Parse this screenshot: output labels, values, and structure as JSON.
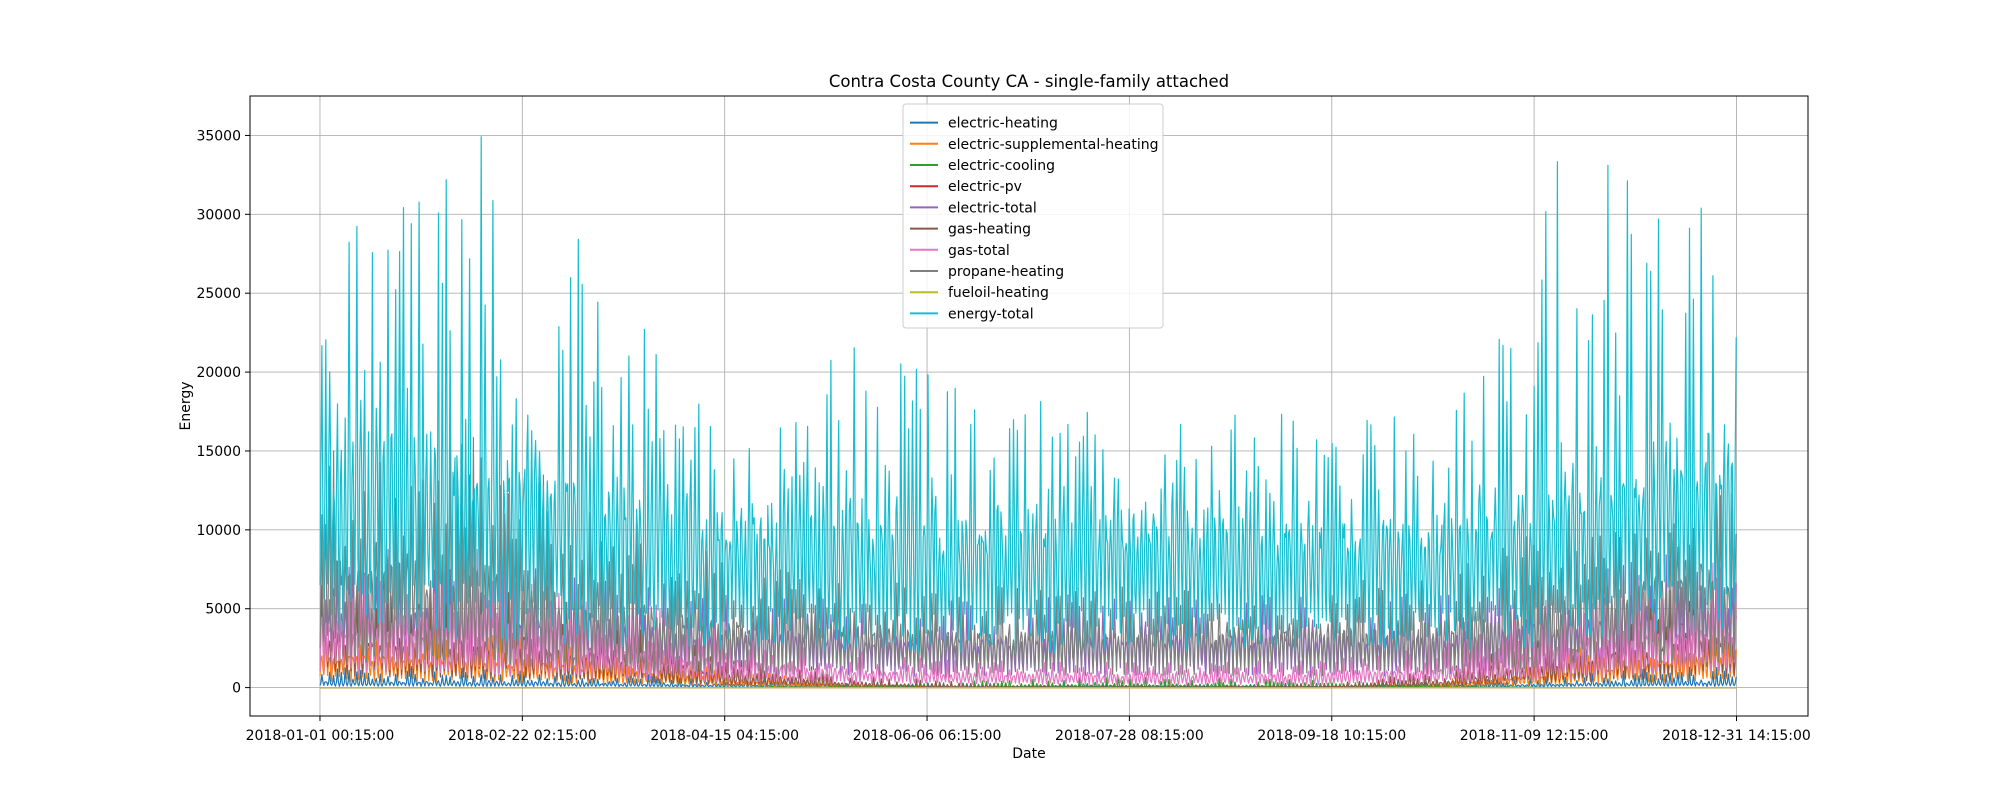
{
  "chart_data": {
    "type": "line",
    "title": "Contra Costa County CA - single-family attached",
    "xlabel": "Date",
    "ylabel": "Energy",
    "xlim": [
      "2017-12-14 00:00",
      "2019-01-19 00:00"
    ],
    "ylim": [
      -1800,
      37500
    ],
    "yticks": [
      0,
      5000,
      10000,
      15000,
      20000,
      25000,
      30000,
      35000
    ],
    "xticks": [
      "2018-01-01 00:15:00",
      "2018-02-22 02:15:00",
      "2018-04-15 04:15:00",
      "2018-06-06 06:15:00",
      "2018-07-28 08:15:00",
      "2018-09-18 10:15:00",
      "2018-11-09 12:15:00",
      "2018-12-31 14:15:00"
    ],
    "grid": true,
    "legend_position": "upper-center",
    "series": [
      {
        "name": "electric-heating",
        "color": "#1f77b4",
        "monthly_mean": [
          300,
          260,
          200,
          120,
          80,
          60,
          60,
          60,
          60,
          90,
          180,
          280
        ],
        "monthly_peak": [
          1400,
          1200,
          900,
          600,
          400,
          300,
          300,
          300,
          300,
          400,
          800,
          1300
        ]
      },
      {
        "name": "electric-supplemental-heating",
        "color": "#ff7f0e",
        "monthly_mean": [
          1600,
          1400,
          900,
          300,
          60,
          0,
          0,
          0,
          0,
          100,
          700,
          1500
        ],
        "monthly_peak": [
          3300,
          4200,
          2600,
          1200,
          400,
          0,
          0,
          0,
          0,
          500,
          2500,
          3300
        ]
      },
      {
        "name": "electric-cooling",
        "color": "#2ca02c",
        "monthly_mean": [
          0,
          0,
          0,
          5,
          20,
          60,
          120,
          110,
          80,
          30,
          0,
          0
        ],
        "monthly_peak": [
          0,
          0,
          0,
          50,
          150,
          400,
          700,
          650,
          500,
          200,
          0,
          0
        ]
      },
      {
        "name": "electric-pv",
        "color": "#d62728",
        "monthly_mean": [
          0,
          0,
          0,
          0,
          0,
          0,
          0,
          0,
          0,
          0,
          0,
          0
        ],
        "monthly_peak": [
          0,
          0,
          0,
          0,
          0,
          0,
          0,
          0,
          0,
          0,
          0,
          0
        ]
      },
      {
        "name": "electric-total",
        "color": "#9467bd",
        "monthly_mean": [
          4000,
          3800,
          3200,
          2800,
          2600,
          2500,
          2700,
          2700,
          2600,
          2700,
          3300,
          3900
        ],
        "monthly_peak": [
          9000,
          8500,
          7000,
          6000,
          5500,
          5500,
          6000,
          6000,
          5800,
          6000,
          7500,
          8800
        ]
      },
      {
        "name": "gas-heating",
        "color": "#8c564b",
        "monthly_mean": [
          2600,
          2300,
          1500,
          600,
          200,
          50,
          20,
          20,
          50,
          300,
          1300,
          2500
        ],
        "monthly_peak": [
          7000,
          6500,
          4500,
          2200,
          900,
          300,
          150,
          150,
          300,
          1200,
          4000,
          6800
        ]
      },
      {
        "name": "gas-total",
        "color": "#e377c2",
        "monthly_mean": [
          3200,
          2900,
          2100,
          1300,
          900,
          700,
          650,
          650,
          700,
          1000,
          2000,
          3100
        ],
        "monthly_peak": [
          8500,
          9500,
          6000,
          3500,
          2500,
          1800,
          1600,
          1600,
          1800,
          3000,
          6000,
          8500
        ]
      },
      {
        "name": "propane-heating",
        "color": "#7f7f7f",
        "monthly_mean": [
          6200,
          5700,
          4200,
          3500,
          3200,
          3000,
          3000,
          3000,
          3000,
          3200,
          4500,
          6200
        ],
        "monthly_peak": [
          15500,
          16000,
          11000,
          8000,
          7000,
          6500,
          6500,
          6500,
          6500,
          7500,
          12000,
          14500
        ]
      },
      {
        "name": "fueloil-heating",
        "color": "#bcbd22",
        "monthly_mean": [
          0,
          0,
          0,
          0,
          0,
          0,
          0,
          0,
          0,
          0,
          0,
          0
        ],
        "monthly_peak": [
          0,
          0,
          0,
          0,
          0,
          0,
          0,
          0,
          0,
          0,
          0,
          0
        ]
      },
      {
        "name": "energy-total",
        "color": "#17becf",
        "monthly_mean": [
          12500,
          12000,
          10000,
          9200,
          8800,
          8600,
          9000,
          9000,
          8800,
          8900,
          10500,
          12500
        ],
        "monthly_peak": [
          31500,
          35800,
          26000,
          16500,
          22700,
          19000,
          19000,
          18500,
          17500,
          17500,
          35500,
          32400
        ]
      }
    ]
  }
}
